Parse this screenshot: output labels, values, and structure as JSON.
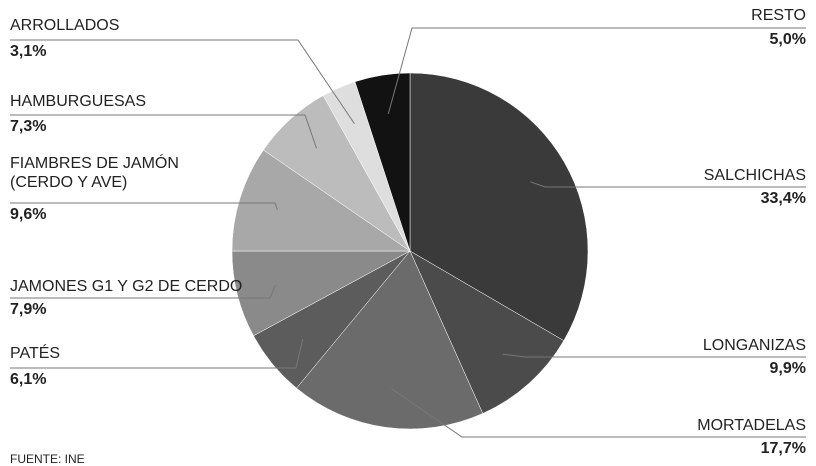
{
  "chart_data": {
    "type": "pie",
    "categories": [
      "SALCHICHAS",
      "LONGANIZAS",
      "MORTADELAS",
      "PATÉS",
      "JAMONES G1 Y G2 DE CERDO",
      "FIAMBRES DE JAMÓN\n(CERDO Y AVE)",
      "HAMBURGUESAS",
      "ARROLLADOS",
      "RESTO"
    ],
    "values": [
      33.4,
      9.9,
      17.7,
      6.1,
      7.9,
      9.6,
      7.3,
      3.1,
      5.0
    ],
    "value_labels": [
      "33,4%",
      "9,9%",
      "17,7%",
      "6,1%",
      "7,9%",
      "9,6%",
      "7,3%",
      "3,1%",
      "5,0%"
    ],
    "colors": [
      "#3a3a3a",
      "#4b4b4b",
      "#6b6b6b",
      "#5c5c5c",
      "#8a8a8a",
      "#a8a8a8",
      "#bcbcbc",
      "#dedede",
      "#121212"
    ],
    "source": "FUENTE: INE"
  }
}
